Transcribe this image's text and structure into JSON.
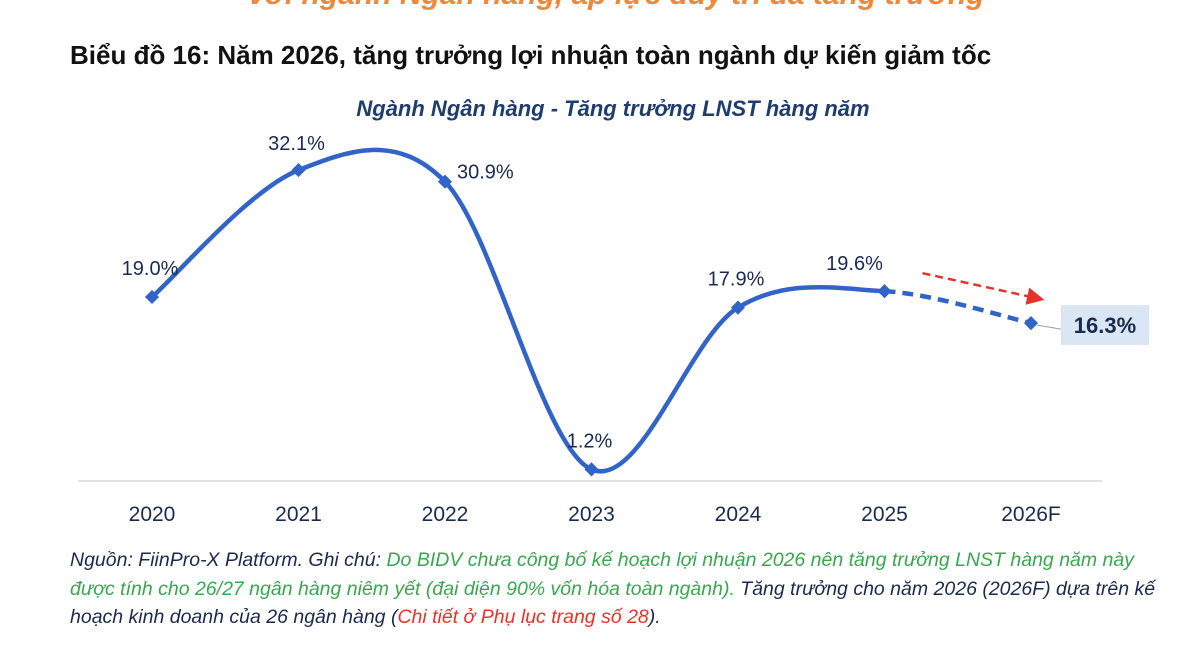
{
  "page": {
    "banner": "với ngành Ngân hàng, áp lực duy trì đà tăng trưởng",
    "figure_title": "Biểu đồ 16: Năm 2026, tăng trưởng lợi nhuận toàn ngành dự kiến giảm tốc",
    "note": {
      "p1": "Nguồn: FiinPro-X Platform. Ghi chú: ",
      "p2": "Do BIDV chưa công bố kế hoạch lợi nhuận 2026 nên tăng trưởng LNST hàng năm này được tính cho 26/27 ngân hàng niêm yết (đại diện 90% vốn hóa toàn ngành).",
      "p3": " Tăng trưởng cho năm 2026 (2026F) dựa trên kế hoạch kinh doanh của 26 ngân hàng (",
      "p4": "Chi tiết ở Phụ lục trang số 28",
      "p5": ")."
    }
  },
  "chart_data": {
    "type": "line",
    "title": "Ngành Ngân hàng - Tăng trưởng LNST hàng năm",
    "categories": [
      "2020",
      "2021",
      "2022",
      "2023",
      "2024",
      "2025",
      "2026F"
    ],
    "values": [
      19.0,
      32.1,
      30.9,
      1.2,
      17.9,
      19.6,
      16.3
    ],
    "labels": [
      "19.0%",
      "32.1%",
      "30.9%",
      "1.2%",
      "17.9%",
      "19.6%",
      "16.3%"
    ],
    "forecast_index": 6,
    "line_color": "#3264c8",
    "forecast_arrow_color": "#e5322d",
    "highlight_bg": "#dbe6f4",
    "highlight_text": "#1a2a4f",
    "ylim": [
      0,
      35
    ]
  }
}
